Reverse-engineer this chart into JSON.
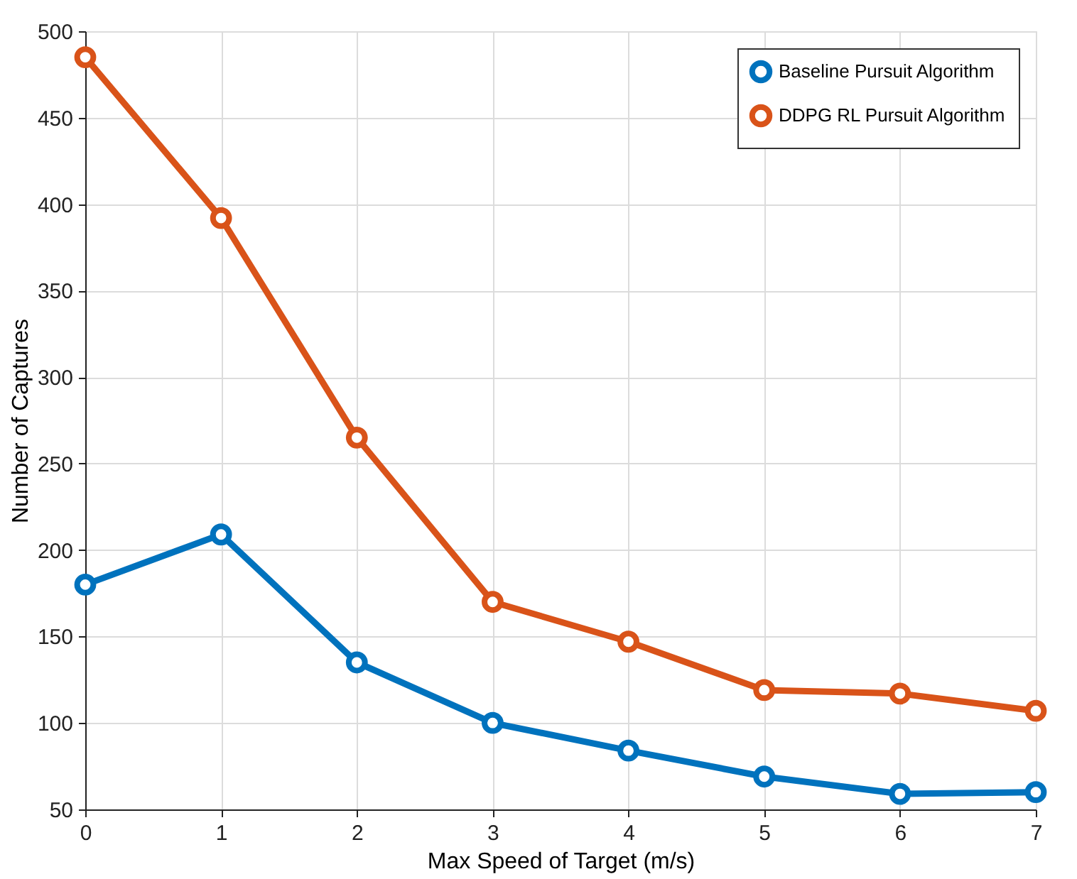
{
  "chart_data": {
    "type": "line",
    "xlabel": "Max Speed of Target (m/s)",
    "ylabel": "Number of Captures",
    "x": [
      0,
      1,
      2,
      3,
      4,
      5,
      6,
      7
    ],
    "series": [
      {
        "name": "Baseline Pursuit Algorithm",
        "color": "#0072bd",
        "values": [
          180,
          209,
          135,
          100,
          84,
          69,
          59,
          60
        ]
      },
      {
        "name": "DDPG RL Pursuit Algorithm",
        "color": "#d95319",
        "values": [
          485,
          392,
          265,
          170,
          147,
          119,
          117,
          107
        ]
      }
    ],
    "xlim": [
      0,
      7
    ],
    "xticks": [
      0,
      1,
      2,
      3,
      4,
      5,
      6,
      7
    ],
    "ylim": [
      50,
      500
    ],
    "yticks": [
      50,
      100,
      150,
      200,
      250,
      300,
      350,
      400,
      450,
      500
    ],
    "grid": true,
    "legend": "top right",
    "marker": "circle",
    "line_style": "solid"
  }
}
